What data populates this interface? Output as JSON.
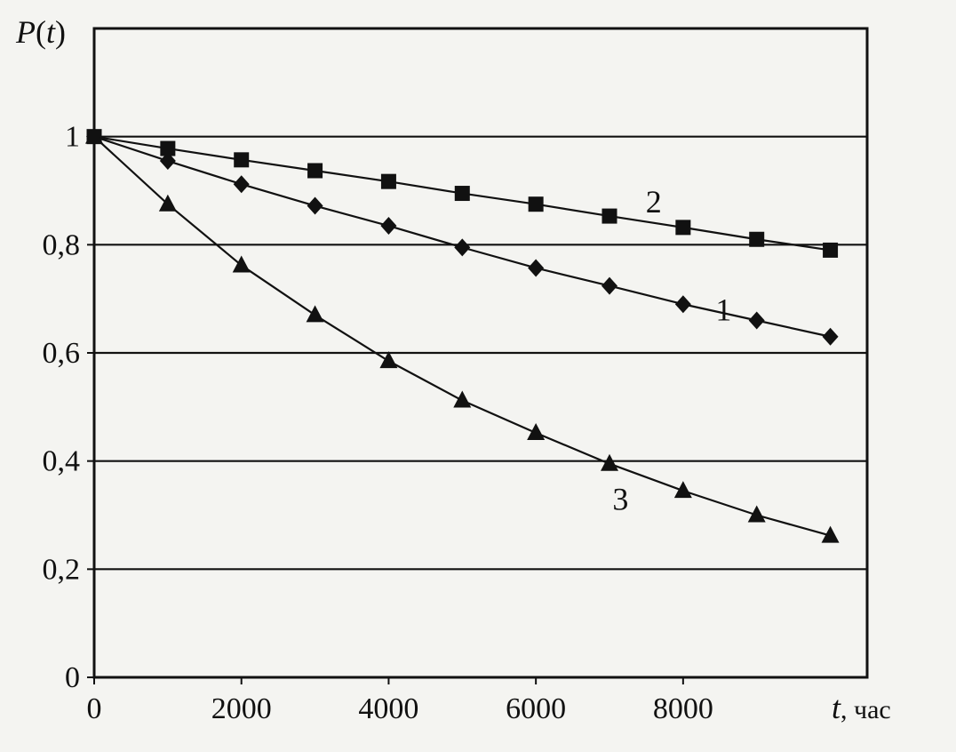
{
  "chart_data": {
    "type": "line",
    "title": "",
    "ylabel": "P(t)",
    "xlabel": "t, час",
    "xlabel_var": "t",
    "xlabel_unit": ", час",
    "ylabel_parts": {
      "fn": "P",
      "open": "(",
      "var": "t",
      "close": ")"
    },
    "xlim": [
      0,
      10500
    ],
    "ylim": [
      0,
      1.2
    ],
    "x_ticks": [
      0,
      2000,
      4000,
      6000,
      8000
    ],
    "x_tick_labels": [
      "0",
      "2000",
      "4000",
      "6000",
      "8000"
    ],
    "y_ticks": [
      0,
      0.2,
      0.4,
      0.6,
      0.8,
      1
    ],
    "y_tick_labels": [
      "0",
      "0,2",
      "0,4",
      "0,6",
      "0,8",
      "1"
    ],
    "grid": {
      "horizontal": true,
      "vertical": false
    },
    "legend": "none",
    "colors": {
      "line": "#111111",
      "background": "#f4f4f1"
    },
    "series": [
      {
        "label": "1",
        "marker": "diamond",
        "x": [
          0,
          1000,
          2000,
          3000,
          4000,
          5000,
          6000,
          7000,
          8000,
          9000,
          10000
        ],
        "y": [
          1.0,
          0.955,
          0.912,
          0.872,
          0.835,
          0.795,
          0.757,
          0.724,
          0.69,
          0.66,
          0.63
        ]
      },
      {
        "label": "2",
        "marker": "square",
        "x": [
          0,
          1000,
          2000,
          3000,
          4000,
          5000,
          6000,
          7000,
          8000,
          9000,
          10000
        ],
        "y": [
          1.0,
          0.978,
          0.957,
          0.937,
          0.917,
          0.895,
          0.875,
          0.853,
          0.832,
          0.81,
          0.79
        ]
      },
      {
        "label": "3",
        "marker": "triangle",
        "x": [
          0,
          1000,
          2000,
          3000,
          4000,
          5000,
          6000,
          7000,
          8000,
          9000,
          10000
        ],
        "y": [
          1.0,
          0.875,
          0.762,
          0.67,
          0.585,
          0.512,
          0.452,
          0.395,
          0.345,
          0.3,
          0.262
        ]
      }
    ]
  }
}
